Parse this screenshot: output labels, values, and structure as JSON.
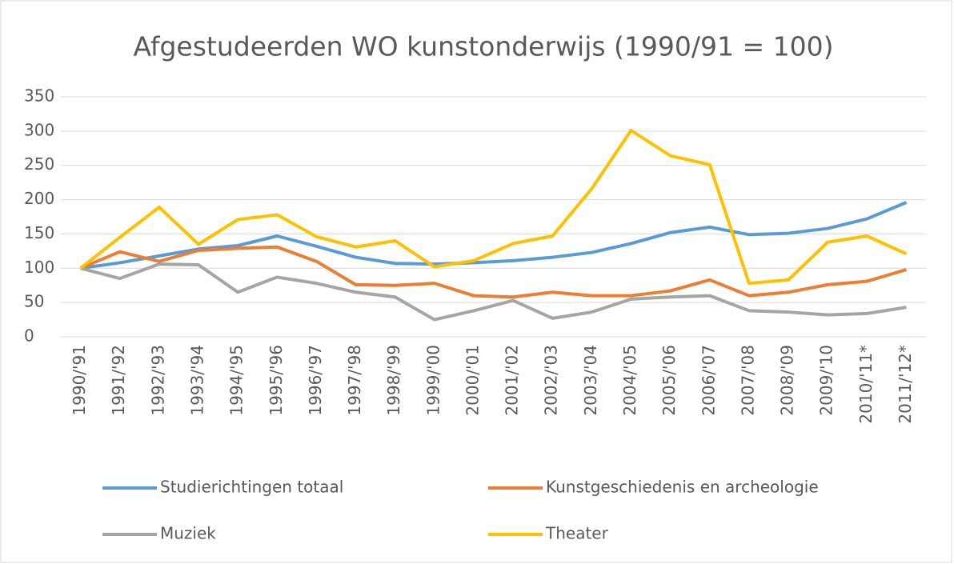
{
  "chart_data": {
    "type": "line",
    "title": "Afgestudeerden WO kunstonderwijs (1990/91 = 100)",
    "categories": [
      "1990/'91",
      "1991/'92",
      "1992/'93",
      "1993/'94",
      "1994/'95",
      "1995/'96",
      "1996/'97",
      "1997/'98",
      "1998/'99",
      "1999/'00",
      "2000/'01",
      "2001/'02",
      "2002/'03",
      "2003/'04",
      "2004/'05",
      "2005/'06",
      "2006/'07",
      "2007/'08",
      "2008/'09",
      "2009/'10",
      "2010/'11*",
      "2011/'12*"
    ],
    "series": [
      {
        "name": "Studierichtingen totaal",
        "color": "#5b9bd5",
        "values": [
          100,
          108,
          118,
          128,
          133,
          147,
          132,
          116,
          107,
          106,
          108,
          111,
          116,
          123,
          136,
          152,
          160,
          149,
          151,
          158,
          172,
          196
        ]
      },
      {
        "name": "Kunstgeschiedenis en archeologie",
        "color": "#ed7d31",
        "values": [
          100,
          124,
          110,
          126,
          129,
          131,
          110,
          76,
          75,
          78,
          60,
          58,
          65,
          60,
          60,
          67,
          83,
          60,
          65,
          76,
          81,
          98
        ]
      },
      {
        "name": "Muziek",
        "color": "#a5a5a5",
        "values": [
          100,
          85,
          106,
          105,
          65,
          87,
          78,
          65,
          58,
          25,
          38,
          53,
          27,
          36,
          55,
          58,
          60,
          38,
          36,
          32,
          34,
          43
        ]
      },
      {
        "name": "Theater",
        "color": "#ffc000",
        "values": [
          100,
          145,
          189,
          135,
          171,
          178,
          146,
          131,
          140,
          102,
          111,
          136,
          147,
          216,
          301,
          264,
          251,
          78,
          83,
          138,
          147,
          121
        ]
      }
    ],
    "ylim": [
      0,
      350
    ],
    "yticks": [
      0,
      50,
      100,
      150,
      200,
      250,
      300,
      350
    ],
    "grid": true
  }
}
